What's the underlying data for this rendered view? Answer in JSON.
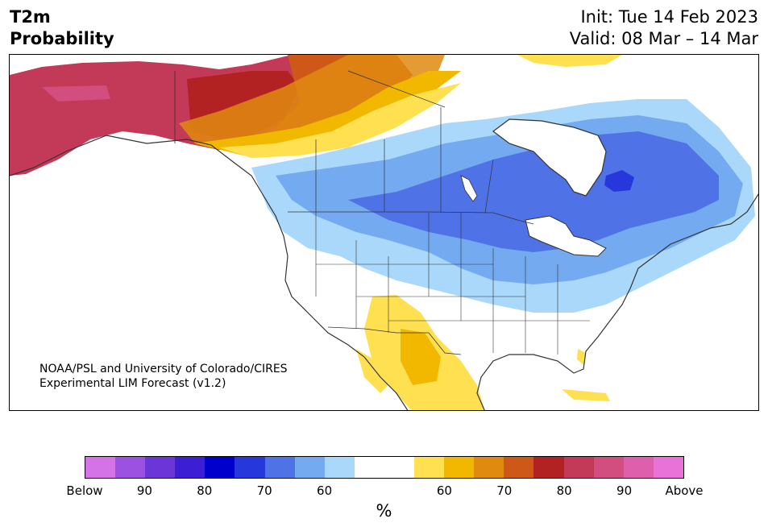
{
  "header": {
    "title_line1": "T2m",
    "title_line2": "Probability",
    "init": "Init: Tue 14 Feb 2023",
    "valid": "Valid: 08 Mar – 14 Mar"
  },
  "credit": {
    "line1": "NOAA/PSL and University of Colorado/CIRES",
    "line2": "Experimental LIM Forecast (v1.2)"
  },
  "colorbar": {
    "unit": "%",
    "colors": [
      "#d472e8",
      "#9c52e0",
      "#6b36d8",
      "#3c1ed4",
      "#0000cc",
      "#2638dc",
      "#4f72e6",
      "#74aaf0",
      "#aad8fa",
      "#ffffff",
      "#ffffff",
      "#ffe050",
      "#f2b800",
      "#e08a10",
      "#cd5818",
      "#b22222",
      "#c23a58",
      "#d24e7e",
      "#de60ac",
      "#e872d8"
    ],
    "labels": [
      "Below",
      "90",
      "80",
      "70",
      "60",
      "60",
      "70",
      "80",
      "90",
      "Above"
    ]
  },
  "map": {
    "region": "North America",
    "palette": {
      "below_60": "#aad8fa",
      "below_70": "#74aaf0",
      "below_80": "#4f72e6",
      "below_90": "#2638dc",
      "above_60": "#ffe050",
      "above_70": "#f2b800",
      "above_80": "#e08a10",
      "above_85": "#cd5818",
      "above_90": "#b22222",
      "above_95": "#c23a58",
      "above_max": "#d24e7e"
    }
  }
}
